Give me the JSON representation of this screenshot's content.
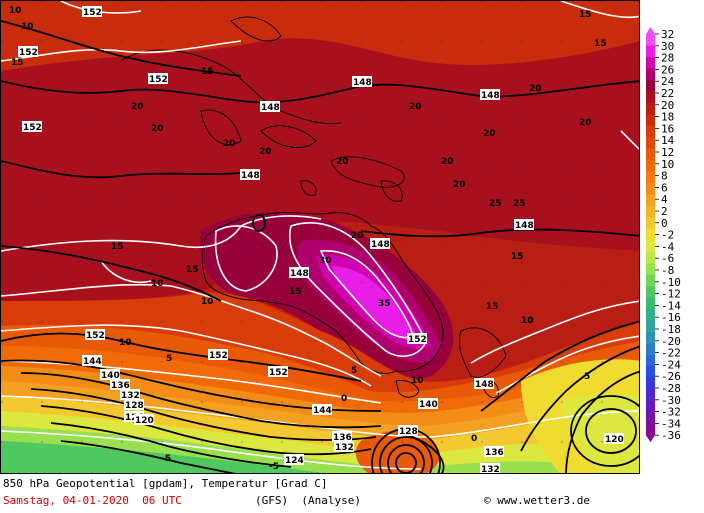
{
  "title_line": "850 hPa Geopotential [gpdam], Temperatur [Grad C]",
  "date_line": "Samstag, 04-01-2020  06 UTC",
  "model_line": "(GFS)  (Analyse)",
  "credit_line": "© www.wetter3.de",
  "legend": {
    "labels": [
      "32",
      "30",
      "28",
      "26",
      "24",
      "22",
      "20",
      "18",
      "16",
      "14",
      "12",
      "10",
      "8",
      "6",
      "4",
      "2",
      "0",
      "-2",
      "-4",
      "-6",
      "-8",
      "-10",
      "-12",
      "-14",
      "-16",
      "-18",
      "-20",
      "-22",
      "-24",
      "-26",
      "-28",
      "-30",
      "-32",
      "-34",
      "-36"
    ],
    "colors": [
      "#f04ef0",
      "#e81ee8",
      "#d000b0",
      "#b00070",
      "#98003c",
      "#a8101e",
      "#b81e14",
      "#c82c0c",
      "#d83c08",
      "#e04808",
      "#e85a08",
      "#f06a08",
      "#f47a10",
      "#f48c18",
      "#f4a020",
      "#f4b428",
      "#f4c830",
      "#f0dc30",
      "#dce840",
      "#bce848",
      "#98e050",
      "#70d458",
      "#50c860",
      "#38bc70",
      "#30b088",
      "#30a4a0",
      "#3090b8",
      "#2c7cc8",
      "#2868d8",
      "#2850e0",
      "#3838e0",
      "#5028d0",
      "#6818c0",
      "#7810a8",
      "#880c90"
    ]
  },
  "isotherm_labels": [
    "10",
    "10",
    "15",
    "15",
    "15",
    "15",
    "20",
    "20",
    "20",
    "20",
    "20",
    "20",
    "20",
    "20",
    "20",
    "20",
    "20",
    "25",
    "25",
    "15",
    "15",
    "15",
    "10",
    "10",
    "10",
    "5",
    "5",
    "0",
    "0",
    "-5",
    "-5",
    "5",
    "10",
    "15",
    "20",
    "15",
    "10",
    "30",
    "35"
  ],
  "height_labels": [
    "152",
    "152",
    "152",
    "152",
    "148",
    "148",
    "148",
    "148",
    "148",
    "148",
    "148",
    "152",
    "152",
    "152",
    "152",
    "144",
    "140",
    "136",
    "132",
    "128",
    "124",
    "120",
    "144",
    "140",
    "136",
    "132",
    "128",
    "124",
    "120",
    "148",
    "136",
    "132"
  ]
}
